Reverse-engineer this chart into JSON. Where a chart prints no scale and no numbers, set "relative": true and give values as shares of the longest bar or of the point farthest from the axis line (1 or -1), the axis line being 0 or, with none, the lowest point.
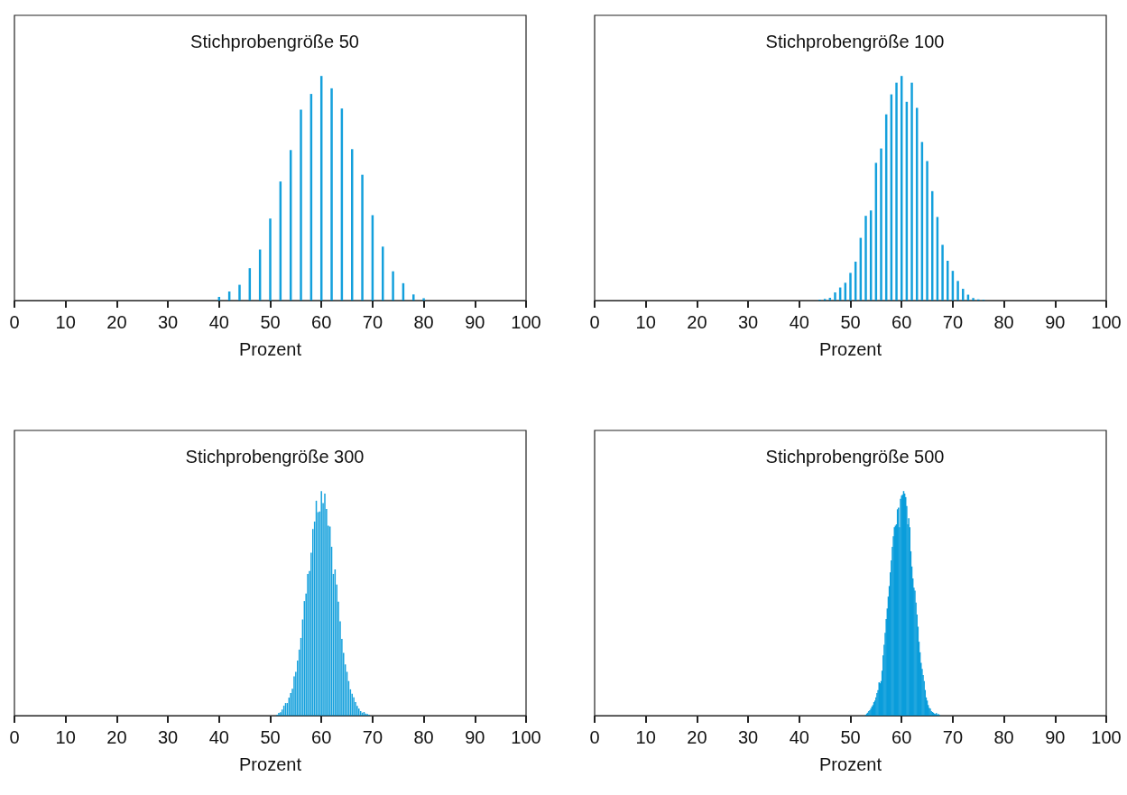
{
  "chart_data": [
    {
      "type": "bar",
      "title": "Stichprobengröße 50",
      "xlabel": "Prozent",
      "relative": true,
      "color": "#14a0dc",
      "xlim": [
        0,
        100
      ],
      "xticks": [
        0,
        10,
        20,
        30,
        40,
        50,
        60,
        70,
        80,
        90,
        100
      ],
      "tick_labels": "x",
      "x": [
        40,
        42,
        44,
        46,
        48,
        50,
        52,
        54,
        56,
        58,
        60,
        62,
        64,
        66,
        68,
        70,
        72,
        74,
        76,
        78,
        80
      ],
      "values": [
        0.016,
        0.04,
        0.07,
        0.144,
        0.227,
        0.365,
        0.53,
        0.67,
        0.85,
        0.92,
        1,
        0.945,
        0.855,
        0.674,
        0.56,
        0.38,
        0.24,
        0.13,
        0.077,
        0.027,
        0.01
      ]
    },
    {
      "type": "bar",
      "title": "Stichprobengröße 100",
      "xlabel": "Prozent",
      "relative": true,
      "color": "#14a0dc",
      "xlim": [
        0,
        100
      ],
      "xticks": [
        0,
        10,
        20,
        30,
        40,
        50,
        60,
        70,
        80,
        90,
        100
      ],
      "tick_labels": "x",
      "x": [
        44,
        45,
        46,
        47,
        48,
        49,
        50,
        51,
        52,
        53,
        54,
        55,
        56,
        57,
        58,
        59,
        60,
        61,
        62,
        63,
        64,
        65,
        66,
        67,
        68,
        69,
        70,
        71,
        72,
        73,
        74,
        75,
        76
      ],
      "values": [
        0.004,
        0.007,
        0.012,
        0.036,
        0.058,
        0.079,
        0.123,
        0.173,
        0.279,
        0.377,
        0.401,
        0.613,
        0.677,
        0.829,
        0.918,
        0.97,
        1,
        0.885,
        0.97,
        0.858,
        0.706,
        0.621,
        0.487,
        0.372,
        0.248,
        0.177,
        0.132,
        0.087,
        0.052,
        0.026,
        0.011,
        0.005,
        0.003
      ]
    },
    {
      "type": "bar",
      "title": "Stichprobengröße 300",
      "xlabel": "Prozent",
      "relative": true,
      "color": "#14a0dc",
      "xlim": [
        0,
        100
      ],
      "xticks": [
        0,
        10,
        20,
        30,
        40,
        50,
        60,
        70,
        80,
        90,
        100
      ],
      "tick_labels": "x",
      "x": [
        51.33,
        51.67,
        52,
        52.33,
        52.67,
        53,
        53.33,
        53.67,
        54,
        54.33,
        54.67,
        55,
        55.33,
        55.67,
        56,
        56.33,
        56.67,
        57,
        57.33,
        57.67,
        58,
        58.33,
        58.67,
        59,
        59.33,
        59.67,
        60,
        60.33,
        60.67,
        61,
        61.33,
        61.67,
        62,
        62.33,
        62.67,
        63,
        63.33,
        63.67,
        64,
        64.33,
        64.67,
        65,
        65.33,
        65.67,
        66,
        66.33,
        66.67,
        67,
        67.33,
        67.67,
        68,
        68.33,
        68.67,
        69,
        69.33
      ],
      "values": [
        0.004,
        0.012,
        0.015,
        0.027,
        0.044,
        0.056,
        0.056,
        0.08,
        0.1,
        0.12,
        0.175,
        0.195,
        0.245,
        0.294,
        0.346,
        0.428,
        0.51,
        0.544,
        0.631,
        0.644,
        0.725,
        0.831,
        0.864,
        0.957,
        0.906,
        0.909,
        1,
        0.946,
        0.989,
        0.92,
        0.846,
        0.842,
        0.752,
        0.631,
        0.651,
        0.584,
        0.507,
        0.42,
        0.342,
        0.279,
        0.228,
        0.195,
        0.154,
        0.117,
        0.097,
        0.081,
        0.06,
        0.043,
        0.031,
        0.02,
        0.013,
        0.016,
        0.009,
        0.007,
        0.004
      ]
    },
    {
      "type": "bar",
      "title": "Stichprobengröße 500",
      "xlabel": "Prozent",
      "relative": true,
      "color": "#0a9ddb",
      "xlim": [
        0,
        100
      ],
      "xticks": [
        0,
        10,
        20,
        30,
        40,
        50,
        60,
        70,
        80,
        90,
        100
      ],
      "tick_labels": "x",
      "x": [
        53,
        53.2,
        53.4,
        53.6,
        53.8,
        54,
        54.2,
        54.4,
        54.6,
        54.8,
        55,
        55.2,
        55.4,
        55.6,
        55.8,
        56,
        56.2,
        56.4,
        56.6,
        56.8,
        57,
        57.2,
        57.4,
        57.6,
        57.8,
        58,
        58.2,
        58.4,
        58.6,
        58.8,
        59,
        59.2,
        59.4,
        59.6,
        59.8,
        60,
        60.2,
        60.4,
        60.6,
        60.8,
        61,
        61.2,
        61.4,
        61.6,
        61.8,
        62,
        62.2,
        62.4,
        62.6,
        62.8,
        63,
        63.2,
        63.4,
        63.6,
        63.8,
        64,
        64.2,
        64.4,
        64.6,
        64.8,
        65,
        65.2,
        65.4,
        65.6,
        65.8,
        66,
        66.2,
        66.4,
        66.6,
        66.8,
        67,
        67.2,
        67.4
      ],
      "values": [
        0.004,
        0.009,
        0.013,
        0.02,
        0.024,
        0.031,
        0.04,
        0.047,
        0.06,
        0.067,
        0.081,
        0.1,
        0.114,
        0.148,
        0.144,
        0.154,
        0.2,
        0.268,
        0.315,
        0.369,
        0.43,
        0.477,
        0.53,
        0.577,
        0.638,
        0.691,
        0.752,
        0.799,
        0.839,
        0.846,
        0.852,
        0.919,
        0.926,
        0.839,
        0.966,
        0.98,
        0.984,
        1,
        0.989,
        0.973,
        0.933,
        0.852,
        0.879,
        0.839,
        0.732,
        0.664,
        0.611,
        0.57,
        0.557,
        0.503,
        0.45,
        0.396,
        0.329,
        0.282,
        0.235,
        0.208,
        0.181,
        0.154,
        0.114,
        0.081,
        0.067,
        0.047,
        0.034,
        0.031,
        0.02,
        0.016,
        0.013,
        0.009,
        0.007,
        0.011,
        0.004,
        0.007,
        0.003
      ]
    }
  ]
}
